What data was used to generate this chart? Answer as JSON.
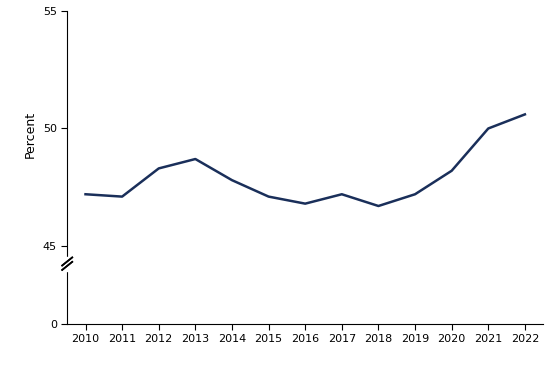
{
  "years": [
    2010,
    2011,
    2012,
    2013,
    2014,
    2015,
    2016,
    2017,
    2018,
    2019,
    2020,
    2021,
    2022
  ],
  "values": [
    47.2,
    47.1,
    48.3,
    48.7,
    47.8,
    47.1,
    46.8,
    47.2,
    46.7,
    47.2,
    48.2,
    50.0,
    50.6
  ],
  "line_color": "#1a2f5a",
  "line_width": 1.8,
  "ylabel": "Percent",
  "ylim_top_bottom": 44.5,
  "ylim_top_top": 55,
  "ylim_bot_bottom": 0,
  "ylim_bot_top": 1,
  "yticks_top": [
    45,
    50,
    55
  ],
  "yticks_bot": [
    0
  ],
  "xlim_left": 2009.5,
  "xlim_right": 2022.5,
  "background_color": "#ffffff",
  "axis_color": "#000000",
  "top_height_ratio": 0.82,
  "bot_height_ratio": 0.18
}
